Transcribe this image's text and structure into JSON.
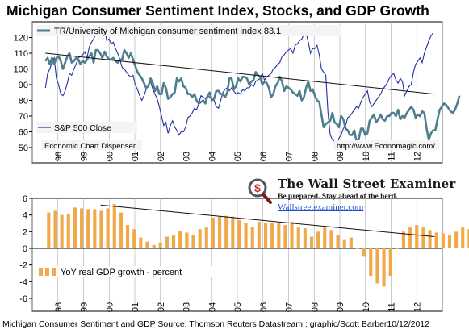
{
  "title": "Michigan Consumer Sentiment Index, Stocks, and GDP Growth",
  "footer": "Michigan Consumer Sentiment and GDP  Source: Thomson Reuters Datastream : graphic/Scott Barber10/12/2012",
  "colors": {
    "sentiment": "#4f7f8f",
    "sp500": "#2230a0",
    "gdp_bars": "#f0a848",
    "trendline": "#111111",
    "legend_box": "#f4f4f4"
  },
  "watermark": {
    "brand": "The Wall Street Examiner",
    "tagline": "Be prepared. Stay ahead of the herd.",
    "url": "Wallstreetexaminer.com",
    "icon": "magnifier-dollar-logo-icon"
  },
  "chart_data": [
    {
      "type": "line",
      "series": [
        {
          "name": "TR/University of Michigan consumer sentiment index  83.1",
          "values": [
            105,
            107,
            103,
            107,
            103,
            107,
            108,
            105,
            100,
            104,
            108,
            110,
            104,
            105,
            107,
            106,
            103,
            105,
            104,
            106,
            108,
            110,
            104,
            112,
            112,
            110,
            107,
            111,
            108,
            106,
            106,
            107,
            105,
            104,
            106,
            106,
            112,
            110,
            107,
            110,
            106,
            102,
            98,
            96,
            94,
            91,
            88,
            89,
            94,
            91,
            86,
            89,
            84,
            84,
            91,
            88,
            81,
            82,
            84,
            85,
            94,
            92,
            94,
            89,
            88,
            84,
            84,
            82,
            84,
            80,
            78,
            79,
            80,
            78,
            83,
            85,
            80,
            81,
            86,
            86,
            84,
            84,
            82,
            85,
            94,
            94,
            87,
            89,
            94,
            92,
            95,
            95,
            94,
            90,
            92,
            93,
            98,
            96,
            95,
            90,
            92,
            91,
            88,
            82,
            84,
            89,
            91,
            95,
            92,
            86,
            89,
            88,
            87,
            85,
            84,
            83,
            86,
            80,
            82,
            88,
            92,
            86,
            87,
            83,
            80,
            79,
            71,
            63,
            65,
            66,
            67,
            72,
            66,
            65,
            63,
            70,
            68,
            62,
            61,
            58,
            58,
            61,
            54,
            55,
            62,
            62,
            58,
            59,
            67,
            69,
            71,
            66,
            68,
            71,
            68,
            67,
            70,
            70,
            72,
            72,
            70,
            74,
            68,
            70,
            69,
            72,
            74,
            76,
            74,
            69,
            71,
            70,
            73,
            72,
            62,
            55,
            59,
            61,
            61,
            68,
            74,
            76,
            78,
            77,
            75,
            73,
            72,
            74,
            78,
            83
          ]
        },
        {
          "name": "S&P 500 Close",
          "values": [
            88,
            97,
            100,
            104,
            107,
            94,
            90,
            84,
            83,
            86,
            91,
            97,
            96,
            100,
            103,
            107,
            108,
            109,
            111,
            107,
            114,
            117,
            119,
            122,
            125,
            122,
            126,
            125,
            118,
            119,
            116,
            117,
            113,
            110,
            106,
            101,
            100,
            98,
            96,
            95,
            96,
            90,
            87,
            83,
            80,
            83,
            87,
            90,
            92,
            87,
            84,
            81,
            76,
            70,
            64,
            66,
            59,
            64,
            67,
            63,
            61,
            58,
            60,
            60,
            63,
            69,
            70,
            72,
            75,
            74,
            78,
            83,
            82,
            81,
            83,
            82,
            81,
            80,
            76,
            75,
            80,
            85,
            87,
            88,
            86,
            88,
            86,
            84,
            85,
            84,
            87,
            86,
            88,
            88,
            90,
            89,
            92,
            93,
            94,
            97,
            93,
            95,
            96,
            97,
            100,
            101,
            103,
            104,
            108,
            109,
            111,
            112,
            113,
            110,
            115,
            116,
            118,
            119,
            122,
            123,
            117,
            110,
            113,
            113,
            115,
            109,
            100,
            98,
            96,
            72,
            58,
            55,
            54,
            50,
            56,
            58,
            62,
            64,
            69,
            70,
            72,
            74,
            76,
            75,
            79,
            82,
            84,
            86,
            79,
            76,
            78,
            80,
            82,
            84,
            87,
            89,
            91,
            94,
            96,
            97,
            93,
            91,
            94,
            92,
            83,
            86,
            89,
            90,
            98,
            103,
            105,
            107,
            104,
            110,
            114,
            118,
            121,
            123
          ]
        }
      ],
      "x_tick_labels": [
        "98",
        "99",
        "00",
        "01",
        "02",
        "03",
        "04",
        "05",
        "06",
        "07",
        "08",
        "09",
        "10",
        "11",
        "12"
      ],
      "ylim": [
        50,
        130
      ],
      "y_ticks": [
        50,
        60,
        70,
        80,
        90,
        100,
        110,
        120
      ],
      "trendline": {
        "from": [
          1998,
          110
        ],
        "to": [
          2012.8,
          84
        ]
      },
      "annotations": [
        "Economic Chart Dispenser",
        "http://www.Economagic.com/"
      ],
      "grid": "vertical",
      "legend": "top-left and middle-left"
    },
    {
      "type": "bar",
      "series": [
        {
          "name": "YoY real GDP growth - percent",
          "values": [
            4.3,
            4.5,
            4.0,
            4.1,
            4.9,
            4.8,
            4.7,
            4.7,
            4.5,
            4.8,
            5.3,
            4.3,
            2.8,
            2.3,
            1.3,
            0.8,
            0.4,
            0.7,
            1.4,
            1.6,
            2.1,
            1.9,
            1.6,
            2.3,
            2.5,
            3.7,
            3.8,
            3.9,
            3.8,
            3.4,
            3.1,
            2.6,
            3.2,
            3.0,
            3.1,
            3.0,
            2.8,
            3.2,
            2.5,
            2.4,
            1.4,
            2.0,
            2.5,
            2.2,
            1.6,
            1.0,
            1.3,
            0.0,
            -1.0,
            -3.3,
            -4.2,
            -4.6,
            -3.3,
            -0.1,
            2.0,
            2.5,
            2.8,
            2.5,
            2.2,
            1.9,
            1.8,
            1.6,
            2.0,
            2.5,
            2.3
          ]
        }
      ],
      "x_tick_labels": [
        "98",
        "99",
        "00",
        "01",
        "02",
        "03",
        "04",
        "05",
        "06",
        "07",
        "08",
        "09",
        "10",
        "11",
        "12"
      ],
      "ylim": [
        -6,
        6
      ],
      "y_ticks": [
        -6,
        -4,
        -2,
        0,
        2,
        4,
        6
      ],
      "trendline": {
        "from": [
          2000.1,
          5.2
        ],
        "to": [
          2012.8,
          1.4
        ]
      },
      "grid": "vertical",
      "legend": "middle-left"
    }
  ]
}
